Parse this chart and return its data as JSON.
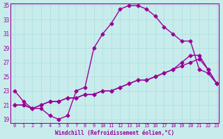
{
  "xlabel": "Windchill (Refroidissement éolien,°C)",
  "bg_color": "#c8ecec",
  "line_color": "#990099",
  "grid_color": "#aadddd",
  "xlim": [
    0,
    23
  ],
  "ylim": [
    19,
    35
  ],
  "yticks": [
    19,
    21,
    23,
    25,
    27,
    29,
    31,
    33,
    35
  ],
  "xticks": [
    0,
    1,
    2,
    3,
    4,
    5,
    6,
    7,
    8,
    9,
    10,
    11,
    12,
    13,
    14,
    15,
    16,
    17,
    18,
    19,
    20,
    21,
    22,
    23
  ],
  "line1_x": [
    0,
    1,
    2,
    3,
    4,
    5,
    6,
    7,
    8,
    9,
    10,
    11,
    12,
    13,
    14,
    15,
    16,
    17,
    18,
    19,
    20,
    21,
    22,
    23
  ],
  "line1_y": [
    23,
    21.5,
    20.5,
    20.5,
    19.5,
    19,
    19.5,
    23,
    23.5,
    29,
    31,
    32.5,
    34.5,
    35,
    35,
    34.5,
    33.5,
    32,
    31,
    30,
    30,
    26,
    25.5,
    24
  ],
  "line2_x": [
    0,
    1,
    2,
    3,
    4,
    5,
    6,
    7,
    8,
    9,
    10,
    11,
    12,
    13,
    14,
    15,
    16,
    17,
    18,
    19,
    20,
    21,
    22,
    23
  ],
  "line2_y": [
    21,
    21,
    20.5,
    21,
    21.5,
    21.5,
    22,
    22,
    22.5,
    22.5,
    23,
    23,
    23.5,
    24,
    24.5,
    24.5,
    25,
    25.5,
    26,
    27,
    28,
    28,
    26,
    24
  ],
  "line3_x": [
    0,
    1,
    2,
    3,
    4,
    5,
    6,
    7,
    8,
    9,
    10,
    11,
    12,
    13,
    14,
    15,
    16,
    17,
    18,
    19,
    20,
    21,
    22,
    23
  ],
  "line3_y": [
    21,
    21,
    20.5,
    21,
    21.5,
    21.5,
    22,
    22,
    22.5,
    22.5,
    23,
    23,
    23.5,
    24,
    24.5,
    24.5,
    25,
    25.5,
    26,
    26.5,
    27,
    27.5,
    26,
    24
  ]
}
